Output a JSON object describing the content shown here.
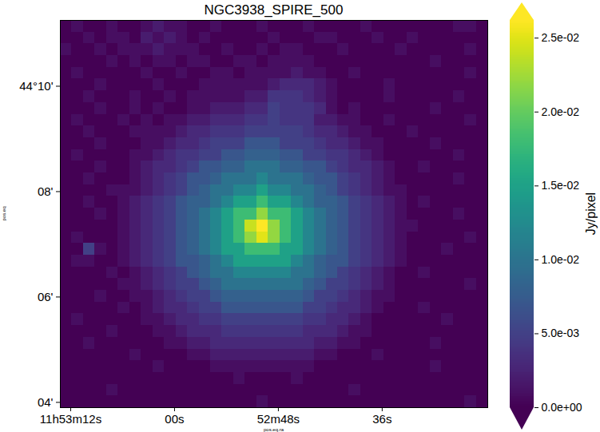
{
  "chart_data": {
    "type": "heatmap",
    "title": "NGC3938_SPIRE_500",
    "x_label": "pos.eq.ra",
    "y_label": "pos.eq",
    "xlim": [
      73.2,
      23.8
    ],
    "ylim": [
      3.9,
      11.25
    ],
    "xticks": [
      {
        "value": 72,
        "label": "11h53m12s"
      },
      {
        "value": 60,
        "label": "00s"
      },
      {
        "value": 48,
        "label": "52m48s"
      },
      {
        "value": 36,
        "label": "36s"
      }
    ],
    "yticks": [
      {
        "value": 10,
        "label": "44°10'"
      },
      {
        "value": 8,
        "label": "08'"
      },
      {
        "value": 6,
        "label": "06'"
      },
      {
        "value": 4,
        "label": "04'"
      }
    ],
    "color": "viridis",
    "colorbar_label": "Jy/pixel",
    "colorbar_range": [
      0,
      0.0262
    ],
    "colorbar_ticks": [
      {
        "value": 0,
        "label": "0.0e+00"
      },
      {
        "value": 0.005,
        "label": "5.0e-03"
      },
      {
        "value": 0.01,
        "label": "1.0e-02"
      },
      {
        "value": 0.015,
        "label": "1.5e-02"
      },
      {
        "value": 0.02,
        "label": "2.0e-02"
      },
      {
        "value": 0.025,
        "label": "2.5e-02"
      }
    ],
    "cells": [
      [
        0,
        0.001,
        0,
        0,
        0.001,
        0,
        0,
        0.001,
        0.002,
        0.001,
        0.001,
        0,
        0,
        0.001,
        0,
        0,
        0,
        0.001,
        0,
        0,
        0,
        0.001,
        0,
        0,
        0,
        0,
        0.001,
        0,
        0,
        0,
        0,
        0,
        0,
        0,
        0.001,
        0.001,
        0
      ],
      [
        0,
        0,
        0.001,
        0,
        0.001,
        0.001,
        0,
        0.002,
        0.001,
        0.002,
        0.001,
        0,
        0.001,
        0,
        0,
        0,
        0,
        0,
        0.001,
        0,
        0,
        0,
        0.001,
        0.001,
        0,
        0,
        0,
        0.001,
        0,
        0,
        0.001,
        0,
        0,
        0,
        0,
        0,
        0
      ],
      [
        0.001,
        0,
        0,
        0.001,
        0,
        0.001,
        0.001,
        0.001,
        0.002,
        0.001,
        0.001,
        0.001,
        0,
        0,
        0.001,
        0,
        0,
        0.001,
        0,
        0.001,
        0.001,
        0,
        0,
        0,
        0.001,
        0,
        0,
        0,
        0,
        0.001,
        0,
        0,
        0,
        0,
        0,
        0.001,
        0
      ],
      [
        0,
        0,
        0,
        0,
        0.001,
        0,
        0.001,
        0,
        0.001,
        0.001,
        0,
        0.001,
        0.001,
        0,
        0,
        0.001,
        0.001,
        0,
        0.001,
        0.001,
        0.001,
        0.001,
        0,
        0,
        0,
        0,
        0,
        0,
        0,
        0,
        0,
        0,
        0.001,
        0,
        0,
        0,
        0
      ],
      [
        0,
        0.001,
        0,
        0,
        0,
        0,
        0,
        0.001,
        0,
        0,
        0.001,
        0,
        0,
        0.001,
        0.001,
        0,
        0.001,
        0.001,
        0.001,
        0.001,
        0.002,
        0.001,
        0.001,
        0,
        0,
        0.001,
        0,
        0,
        0,
        0,
        0,
        0,
        0,
        0,
        0,
        0.001,
        0
      ],
      [
        0,
        0,
        0,
        0.001,
        0,
        0,
        0,
        0,
        0.001,
        0,
        0,
        0,
        0.001,
        0.001,
        0.001,
        0.001,
        0.001,
        0.001,
        0.002,
        0.003,
        0.003,
        0.003,
        0.002,
        0.001,
        0,
        0,
        0,
        0,
        0.001,
        0,
        0,
        0,
        0,
        0,
        0,
        0,
        0
      ],
      [
        0,
        0,
        0.001,
        0,
        0,
        0,
        0.001,
        0,
        0,
        0.001,
        0,
        0.001,
        0.001,
        0.001,
        0.001,
        0.001,
        0.002,
        0.002,
        0.004,
        0.004,
        0.004,
        0.003,
        0.002,
        0.001,
        0,
        0,
        0,
        0,
        0.001,
        0,
        0,
        0,
        0,
        0,
        0.001,
        0,
        0
      ],
      [
        0,
        0,
        0,
        0.001,
        0,
        0,
        0.001,
        0,
        0.001,
        0,
        0,
        0.001,
        0.001,
        0.002,
        0.002,
        0.002,
        0.003,
        0.003,
        0.005,
        0.004,
        0.004,
        0.004,
        0.003,
        0.001,
        0,
        0.001,
        0,
        0,
        0,
        0,
        0,
        0,
        0.001,
        0,
        0,
        0,
        0
      ],
      [
        0,
        0.001,
        0,
        0,
        0,
        0.001,
        0,
        0.001,
        0,
        0.001,
        0.001,
        0.002,
        0.002,
        0.003,
        0.003,
        0.003,
        0.004,
        0.004,
        0.005,
        0.004,
        0.004,
        0.004,
        0.002,
        0.002,
        0.001,
        0.001,
        0,
        0,
        0.001,
        0,
        0,
        0,
        0,
        0,
        0,
        0.001,
        0
      ],
      [
        0,
        0,
        0.001,
        0,
        0,
        0,
        0.001,
        0.001,
        0.001,
        0.001,
        0.002,
        0.003,
        0.003,
        0.004,
        0.004,
        0.004,
        0.005,
        0.005,
        0.005,
        0.005,
        0.005,
        0.004,
        0.003,
        0.003,
        0.002,
        0.001,
        0.001,
        0,
        0,
        0,
        0.001,
        0,
        0,
        0,
        0,
        0,
        0
      ],
      [
        0,
        0,
        0,
        0.001,
        0,
        0,
        0,
        0.001,
        0.001,
        0.002,
        0.003,
        0.003,
        0.004,
        0.005,
        0.005,
        0.005,
        0.007,
        0.007,
        0.007,
        0.005,
        0.005,
        0.005,
        0.004,
        0.003,
        0.003,
        0.002,
        0.001,
        0.001,
        0,
        0,
        0,
        0,
        0.001,
        0,
        0,
        0,
        0
      ],
      [
        0,
        0.001,
        0,
        0,
        0,
        0,
        0.001,
        0.001,
        0.002,
        0.003,
        0.004,
        0.004,
        0.005,
        0.005,
        0.007,
        0.007,
        0.008,
        0.008,
        0.008,
        0.007,
        0.007,
        0.005,
        0.005,
        0.004,
        0.004,
        0.003,
        0.002,
        0.001,
        0,
        0,
        0,
        0,
        0,
        0,
        0.001,
        0,
        0
      ],
      [
        0,
        0,
        0,
        0.001,
        0,
        0,
        0.001,
        0.002,
        0.003,
        0.003,
        0.004,
        0.005,
        0.007,
        0.007,
        0.008,
        0.008,
        0.01,
        0.01,
        0.01,
        0.008,
        0.008,
        0.007,
        0.007,
        0.005,
        0.004,
        0.003,
        0.003,
        0.002,
        0.001,
        0,
        0,
        0.001,
        0,
        0,
        0,
        0,
        0
      ],
      [
        0,
        0,
        0.001,
        0,
        0,
        0,
        0.001,
        0.002,
        0.003,
        0.004,
        0.005,
        0.007,
        0.007,
        0.008,
        0.01,
        0.01,
        0.01,
        0.012,
        0.01,
        0.01,
        0.01,
        0.008,
        0.007,
        0.007,
        0.005,
        0.004,
        0.003,
        0.002,
        0.001,
        0,
        0,
        0,
        0,
        0,
        0.001,
        0,
        0
      ],
      [
        0,
        0,
        0,
        0,
        0.001,
        0.001,
        0.001,
        0.002,
        0.003,
        0.004,
        0.005,
        0.007,
        0.008,
        0.01,
        0.01,
        0.012,
        0.012,
        0.015,
        0.012,
        0.012,
        0.01,
        0.01,
        0.008,
        0.007,
        0.005,
        0.004,
        0.003,
        0.002,
        0.001,
        0.001,
        0,
        0,
        0,
        0,
        0,
        0,
        0
      ],
      [
        0,
        0,
        0.001,
        0,
        0,
        0.001,
        0.002,
        0.003,
        0.004,
        0.005,
        0.007,
        0.008,
        0.008,
        0.01,
        0.012,
        0.015,
        0.015,
        0.018,
        0.015,
        0.015,
        0.012,
        0.01,
        0.008,
        0.008,
        0.007,
        0.005,
        0.004,
        0.003,
        0.002,
        0.001,
        0,
        0.001,
        0,
        0,
        0,
        0,
        0
      ],
      [
        0,
        0,
        0,
        0.001,
        0,
        0.001,
        0.002,
        0.003,
        0.004,
        0.005,
        0.007,
        0.008,
        0.01,
        0.012,
        0.015,
        0.018,
        0.018,
        0.022,
        0.018,
        0.018,
        0.015,
        0.012,
        0.01,
        0.008,
        0.007,
        0.005,
        0.004,
        0.003,
        0.002,
        0.001,
        0,
        0,
        0,
        0,
        0.001,
        0,
        0
      ],
      [
        0,
        0,
        0,
        0,
        0,
        0.001,
        0.002,
        0.003,
        0.004,
        0.005,
        0.007,
        0.008,
        0.01,
        0.012,
        0.015,
        0.018,
        0.024,
        0.027,
        0.022,
        0.018,
        0.015,
        0.012,
        0.01,
        0.008,
        0.007,
        0.005,
        0.004,
        0.003,
        0.002,
        0.001,
        0.001,
        0,
        0,
        0,
        0,
        0,
        0
      ],
      [
        0,
        0.001,
        0,
        0,
        0,
        0.001,
        0.002,
        0.003,
        0.004,
        0.005,
        0.007,
        0.008,
        0.01,
        0.012,
        0.015,
        0.018,
        0.022,
        0.025,
        0.022,
        0.018,
        0.015,
        0.012,
        0.01,
        0.008,
        0.007,
        0.005,
        0.004,
        0.003,
        0.002,
        0.001,
        0,
        0,
        0,
        0,
        0,
        0.001,
        0
      ],
      [
        0,
        0,
        0.005,
        0.001,
        0,
        0.001,
        0.002,
        0.003,
        0.004,
        0.005,
        0.007,
        0.008,
        0.01,
        0.012,
        0.015,
        0.015,
        0.018,
        0.018,
        0.018,
        0.015,
        0.015,
        0.012,
        0.01,
        0.008,
        0.007,
        0.005,
        0.004,
        0.003,
        0.002,
        0.001,
        0,
        0,
        0,
        0.001,
        0,
        0,
        0
      ],
      [
        0,
        0.001,
        0.001,
        0,
        0,
        0.001,
        0.002,
        0.003,
        0.004,
        0.005,
        0.007,
        0.007,
        0.008,
        0.01,
        0.012,
        0.015,
        0.015,
        0.015,
        0.015,
        0.015,
        0.012,
        0.01,
        0.008,
        0.007,
        0.007,
        0.005,
        0.004,
        0.003,
        0.002,
        0.001,
        0,
        0,
        0,
        0,
        0,
        0,
        0
      ],
      [
        0,
        0,
        0,
        0,
        0.001,
        0,
        0.001,
        0.002,
        0.003,
        0.004,
        0.005,
        0.007,
        0.008,
        0.01,
        0.01,
        0.012,
        0.012,
        0.012,
        0.012,
        0.012,
        0.01,
        0.01,
        0.008,
        0.007,
        0.005,
        0.004,
        0.003,
        0.002,
        0.001,
        0,
        0,
        0.001,
        0,
        0,
        0,
        0,
        0
      ],
      [
        0,
        0,
        0,
        0,
        0,
        0.001,
        0.001,
        0.002,
        0.003,
        0.004,
        0.005,
        0.005,
        0.007,
        0.008,
        0.01,
        0.01,
        0.01,
        0.01,
        0.01,
        0.01,
        0.01,
        0.008,
        0.007,
        0.005,
        0.005,
        0.004,
        0.003,
        0.002,
        0.001,
        0,
        0,
        0,
        0,
        0,
        0,
        0.001,
        0
      ],
      [
        0,
        0,
        0,
        0.001,
        0,
        0,
        0.001,
        0.001,
        0.002,
        0.003,
        0.004,
        0.005,
        0.005,
        0.007,
        0.008,
        0.008,
        0.008,
        0.008,
        0.008,
        0.008,
        0.008,
        0.007,
        0.005,
        0.005,
        0.004,
        0.003,
        0.002,
        0.001,
        0.001,
        0,
        0,
        0,
        0,
        0,
        0,
        0,
        0
      ],
      [
        0,
        0,
        0,
        0,
        0,
        0.001,
        0,
        0.001,
        0.002,
        0.003,
        0.003,
        0.004,
        0.005,
        0.005,
        0.007,
        0.007,
        0.007,
        0.007,
        0.007,
        0.007,
        0.007,
        0.005,
        0.005,
        0.004,
        0.003,
        0.003,
        0.002,
        0.001,
        0,
        0,
        0,
        0.001,
        0,
        0,
        0,
        0,
        0
      ],
      [
        0,
        0.001,
        0,
        0,
        0,
        0,
        0,
        0.001,
        0.001,
        0.002,
        0.003,
        0.003,
        0.004,
        0.004,
        0.005,
        0.005,
        0.005,
        0.005,
        0.005,
        0.005,
        0.005,
        0.004,
        0.004,
        0.003,
        0.003,
        0.002,
        0.001,
        0,
        0,
        0,
        0,
        0,
        0,
        0.001,
        0,
        0,
        0
      ],
      [
        0,
        0,
        0,
        0,
        0.001,
        0,
        0,
        0,
        0.001,
        0.001,
        0.002,
        0.003,
        0.003,
        0.003,
        0.004,
        0.004,
        0.004,
        0.004,
        0.004,
        0.004,
        0.004,
        0.003,
        0.003,
        0.003,
        0.002,
        0.001,
        0.001,
        0,
        0,
        0,
        0,
        0,
        0,
        0,
        0,
        0,
        0
      ],
      [
        0,
        0,
        0.001,
        0,
        0,
        0,
        0,
        0,
        0,
        0.001,
        0.001,
        0.002,
        0.002,
        0.003,
        0.003,
        0.003,
        0.003,
        0.003,
        0.003,
        0.003,
        0.003,
        0.003,
        0.002,
        0.002,
        0.001,
        0.001,
        0,
        0,
        0,
        0,
        0,
        0,
        0.001,
        0,
        0,
        0,
        0
      ],
      [
        0,
        0,
        0,
        0,
        0,
        0,
        0.001,
        0,
        0,
        0,
        0,
        0.001,
        0.001,
        0.002,
        0.002,
        0.002,
        0.002,
        0.002,
        0.002,
        0.002,
        0.002,
        0.002,
        0.001,
        0.001,
        0,
        0,
        0,
        0.001,
        0,
        0,
        0,
        0,
        0,
        0,
        0,
        0,
        0
      ],
      [
        0,
        0,
        0,
        0,
        0,
        0,
        0,
        0,
        0.001,
        0,
        0,
        0,
        0,
        0.001,
        0.001,
        0.001,
        0.001,
        0.001,
        0.001,
        0.001,
        0.001,
        0.001,
        0,
        0,
        0,
        0,
        0,
        0,
        0,
        0,
        0,
        0,
        0.001,
        0,
        0,
        0,
        0
      ],
      [
        0,
        0,
        0,
        0,
        0,
        0,
        0,
        0,
        0,
        0,
        0,
        0,
        0,
        0,
        0,
        0.001,
        0,
        0,
        0,
        0,
        0.001,
        0,
        0,
        0,
        0,
        0,
        0,
        0,
        0,
        0,
        0,
        0,
        0,
        0,
        0,
        0,
        0
      ],
      [
        0,
        0,
        0,
        0,
        0.001,
        0,
        0,
        0,
        0,
        0,
        0,
        0,
        0,
        0,
        0,
        0,
        0,
        0,
        0,
        0,
        0,
        0,
        0,
        0,
        0,
        0.001,
        0,
        0,
        0,
        0,
        0,
        0,
        0,
        0,
        0,
        0,
        0
      ],
      [
        0,
        0,
        0,
        0,
        0,
        0,
        0,
        0,
        0,
        0,
        0,
        0,
        0,
        0,
        0,
        0,
        0,
        0.001,
        0,
        0,
        0,
        0,
        0,
        0,
        0,
        0,
        0,
        0,
        0,
        0,
        0,
        0,
        0,
        0,
        0,
        0.001,
        0
      ]
    ]
  }
}
